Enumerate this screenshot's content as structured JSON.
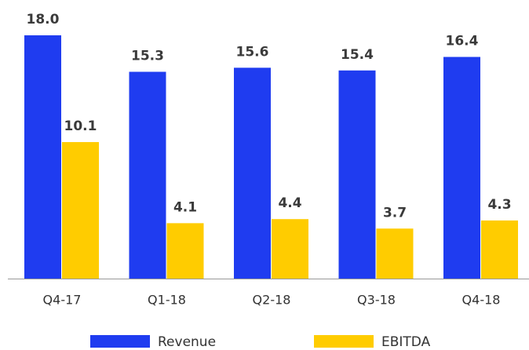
{
  "chart_data": {
    "type": "bar",
    "categories": [
      "Q4-17",
      "Q1-18",
      "Q2-18",
      "Q3-18",
      "Q4-18"
    ],
    "series": [
      {
        "name": "Revenue",
        "color": "#1f3cf0",
        "values": [
          18.0,
          15.3,
          15.6,
          15.4,
          16.4
        ],
        "value_labels": [
          "18.0",
          "15.3",
          "15.6",
          "15.4",
          "16.4"
        ]
      },
      {
        "name": "EBITDA",
        "color": "#ffcc00",
        "values": [
          10.1,
          4.1,
          4.4,
          3.7,
          4.3
        ]
      }
    ],
    "legend": "bottom"
  }
}
